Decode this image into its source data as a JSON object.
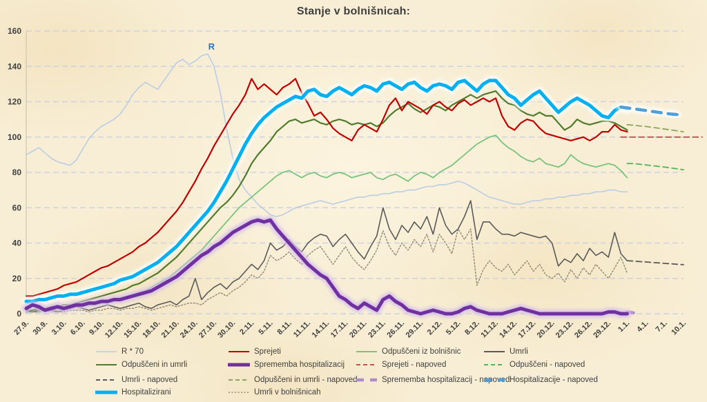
{
  "title": "Stanje v bolnišnicah:",
  "colors": {
    "background": "#f8eed5",
    "grid": "#c9d0e0",
    "text": "#3f3f3f",
    "annotation": "#2e74b5"
  },
  "chart_data": {
    "type": "line",
    "title": "Stanje v bolnišnicah:",
    "xlabel": "",
    "ylabel": "",
    "ylim": [
      0,
      160
    ],
    "y_ticks": [
      0,
      20,
      40,
      60,
      80,
      100,
      120,
      140,
      160
    ],
    "grid": "horizontal-dashed",
    "legend_position": "bottom",
    "x_tick_interval_days": 3,
    "x_total_days": 105,
    "x_start_label": "27.9.",
    "x_tick_labels": [
      "27.9.",
      "30.9.",
      "3.10.",
      "6.10.",
      "9.10.",
      "12.10.",
      "15.10.",
      "18.10.",
      "21.10.",
      "24.10.",
      "27.10.",
      "30.10.",
      "2.11.",
      "5.11.",
      "8.11.",
      "11.11.",
      "14.11.",
      "17.11.",
      "20.11.",
      "23.11.",
      "26.11.",
      "29.11.",
      "2.12.",
      "5.12.",
      "8.12.",
      "11.12.",
      "14.12.",
      "17.12.",
      "20.12.",
      "23.12.",
      "26.12.",
      "29.12.",
      "1.1.",
      "4.1.",
      "7.1.",
      "10.1."
    ],
    "annotation": {
      "label": "R",
      "day": 29.6,
      "value": 149.5,
      "color": "#2e74b5"
    },
    "series": [
      {
        "key": "r70",
        "name": "R * 70",
        "color": "#b9cde5",
        "width": 1.6,
        "start_day": 0,
        "values": [
          90,
          92,
          94,
          91,
          88,
          86,
          85,
          84,
          87,
          93,
          99,
          103,
          106,
          108,
          110,
          113,
          118,
          124,
          128,
          131,
          129,
          127,
          132,
          137,
          142,
          144,
          141,
          143,
          146,
          147,
          140,
          125,
          105,
          88,
          76,
          70,
          66,
          62,
          59,
          56,
          55,
          56,
          58,
          60,
          61,
          62,
          63,
          64,
          63,
          62,
          63,
          64,
          65,
          66,
          66,
          67,
          67,
          68,
          68,
          69,
          69,
          70,
          70,
          71,
          72,
          72,
          73,
          73,
          74,
          75,
          74,
          72,
          70,
          68,
          66,
          65,
          64,
          63,
          62,
          62,
          63,
          64,
          64,
          65,
          65,
          66,
          66,
          67,
          67,
          68,
          68,
          69,
          69,
          70,
          70,
          69,
          69
        ]
      },
      {
        "key": "odpusceni_iz_bolnisnic",
        "name": "Odpuščeni iz bolnišnic",
        "color": "#77c37c",
        "width": 1.8,
        "start_day": 0,
        "values": [
          1,
          1,
          1,
          2,
          2,
          2,
          3,
          3,
          4,
          4,
          5,
          5,
          6,
          7,
          8,
          9,
          10,
          11,
          12,
          13,
          15,
          17,
          19,
          21,
          24,
          27,
          30,
          33,
          36,
          40,
          44,
          48,
          52,
          56,
          60,
          63,
          66,
          69,
          72,
          75,
          78,
          80,
          81,
          79,
          77,
          79,
          80,
          78,
          77,
          79,
          80,
          79,
          77,
          78,
          79,
          80,
          77,
          76,
          78,
          79,
          77,
          75,
          78,
          80,
          79,
          77,
          80,
          82,
          84,
          87,
          90,
          93,
          96,
          98,
          100,
          101,
          97,
          94,
          92,
          89,
          87,
          86,
          88,
          85,
          84,
          83,
          85,
          90,
          87,
          85,
          84,
          83,
          84,
          85,
          84,
          81,
          77
        ]
      },
      {
        "key": "umrli",
        "name": "Umrli",
        "color": "#595959",
        "width": 1.6,
        "start_day": 0,
        "values": [
          2,
          1,
          2,
          3,
          2,
          1,
          2,
          3,
          4,
          3,
          2,
          3,
          4,
          5,
          4,
          3,
          4,
          5,
          6,
          4,
          3,
          5,
          6,
          7,
          5,
          8,
          10,
          20,
          8,
          12,
          15,
          17,
          14,
          18,
          20,
          24,
          28,
          25,
          30,
          40,
          36,
          38,
          42,
          38,
          35,
          40,
          43,
          45,
          44,
          38,
          42,
          45,
          40,
          35,
          31,
          38,
          44,
          60,
          48,
          42,
          50,
          46,
          52,
          48,
          55,
          45,
          60,
          50,
          45,
          48,
          55,
          64,
          42,
          52,
          52,
          48,
          45,
          45,
          44,
          46,
          45,
          44,
          43,
          44,
          40,
          27,
          31,
          29,
          34,
          30,
          37,
          33,
          35,
          32,
          46,
          34,
          30
        ]
      },
      {
        "key": "umrli_v_bolnisnicah",
        "name": "Umrli v bolnišnicah",
        "color": "#8f8875",
        "width": 1.4,
        "dash": "2 2.6",
        "start_day": 0,
        "values": [
          1,
          1,
          1,
          2,
          1,
          1,
          1,
          2,
          2,
          2,
          1,
          2,
          2,
          3,
          3,
          2,
          3,
          3,
          4,
          3,
          2,
          3,
          4,
          5,
          4,
          5,
          6,
          6,
          5,
          8,
          10,
          12,
          10,
          13,
          15,
          18,
          22,
          20,
          24,
          33,
          30,
          32,
          35,
          31,
          28,
          33,
          36,
          38,
          33,
          28,
          33,
          38,
          32,
          28,
          25,
          30,
          36,
          47,
          38,
          33,
          40,
          36,
          42,
          38,
          45,
          35,
          45,
          40,
          34,
          48,
          42,
          48,
          16,
          25,
          30,
          26,
          24,
          28,
          22,
          26,
          30,
          24,
          28,
          22,
          20,
          23,
          18,
          25,
          20,
          26,
          22,
          28,
          24,
          20,
          26,
          32,
          23
        ]
      },
      {
        "key": "odpusceni_in_umrli",
        "name": "Odpuščeni in umrli",
        "color": "#4e7a2a",
        "width": 2.2,
        "start_day": 0,
        "values": [
          2,
          2,
          3,
          3,
          4,
          4,
          5,
          5,
          6,
          7,
          8,
          9,
          10,
          11,
          12,
          13,
          14,
          16,
          17,
          19,
          21,
          23,
          26,
          29,
          32,
          36,
          40,
          44,
          48,
          52,
          56,
          60,
          63,
          67,
          72,
          78,
          85,
          90,
          94,
          98,
          103,
          106,
          109,
          110,
          108,
          109,
          110,
          108,
          107,
          109,
          110,
          109,
          107,
          108,
          107,
          108,
          106,
          108,
          112,
          115,
          117,
          119,
          116,
          114,
          116,
          118,
          117,
          115,
          118,
          120,
          122,
          124,
          122,
          124,
          125,
          126,
          122,
          119,
          118,
          115,
          113,
          112,
          114,
          112,
          112,
          108,
          104,
          106,
          110,
          108,
          107,
          108,
          109,
          109,
          108,
          106,
          104
        ]
      },
      {
        "key": "sprejeti",
        "name": "Sprejeti",
        "color": "#c00000",
        "width": 2.2,
        "start_day": 0,
        "values": [
          10,
          10,
          11,
          12,
          13,
          14,
          16,
          17,
          18,
          20,
          22,
          24,
          26,
          27,
          29,
          31,
          33,
          35,
          38,
          40,
          43,
          46,
          50,
          54,
          58,
          63,
          69,
          75,
          82,
          88,
          95,
          101,
          107,
          113,
          118,
          124,
          133,
          127,
          130,
          127,
          124,
          128,
          130,
          133,
          125,
          119,
          112,
          114,
          110,
          105,
          102,
          100,
          98,
          104,
          107,
          105,
          103,
          110,
          118,
          122,
          115,
          120,
          118,
          116,
          113,
          118,
          120,
          117,
          115,
          119,
          121,
          118,
          120,
          122,
          120,
          122,
          112,
          106,
          104,
          108,
          110,
          109,
          105,
          102,
          101,
          100,
          99,
          98,
          99,
          100,
          98,
          100,
          103,
          103,
          107,
          104,
          103
        ]
      },
      {
        "key": "sprejeti_napoved",
        "name": "Sprejeti - napoved",
        "color": "#c0504d",
        "width": 1.8,
        "dash": "8 5",
        "start_day": 95,
        "values": [
          100,
          100,
          100,
          100,
          100,
          100,
          100,
          100,
          100,
          100,
          100,
          100,
          100,
          100
        ]
      },
      {
        "key": "odpusceni_napoved",
        "name": "Odpuščeni - napoved",
        "color": "#57b25c",
        "width": 1.8,
        "dash": "8 5",
        "start_day": 96,
        "values": [
          85,
          85,
          84.6,
          84.2,
          83.8,
          83.4,
          83,
          82.5,
          82,
          81.5
        ]
      },
      {
        "key": "umrli_napoved",
        "name": "Umrli - napoved",
        "color": "#595959",
        "width": 1.8,
        "dash": "8 5",
        "start_day": 96,
        "values": [
          30,
          29.8,
          29.5,
          29.3,
          29,
          28.8,
          28.5,
          28.3,
          28,
          27.8
        ]
      },
      {
        "key": "odpusceni_in_umrli_napoved",
        "name": "Odpuščeni in umrli - napoved",
        "color": "#8aa65b",
        "width": 1.8,
        "dash": "8 5",
        "start_day": 96,
        "values": [
          107,
          106.7,
          106.3,
          106,
          105.5,
          105,
          104.5,
          104,
          103.5,
          103
        ]
      },
      {
        "key": "hospitalizirani",
        "name": "Hospitalizirani",
        "color": "#00b0f0",
        "width": 5,
        "glow": "#ffffff",
        "start_day": 0,
        "values": [
          7,
          7,
          8,
          8,
          9,
          10,
          10,
          11,
          11,
          12,
          13,
          14,
          15,
          16,
          17,
          19,
          20,
          21,
          23,
          25,
          27,
          29,
          32,
          35,
          38,
          42,
          46,
          50,
          54,
          58,
          63,
          69,
          75,
          82,
          89,
          96,
          102,
          107,
          111,
          114,
          117,
          119,
          121,
          123,
          122,
          126,
          127,
          124,
          123,
          126,
          128,
          126,
          124,
          127,
          129,
          128,
          126,
          130,
          131,
          129,
          127,
          130,
          131,
          128,
          126,
          129,
          130,
          129,
          127,
          131,
          132,
          129,
          126,
          130,
          132,
          132,
          128,
          124,
          122,
          118,
          121,
          124,
          126,
          122,
          118,
          114,
          117,
          120,
          122,
          120,
          118,
          115,
          112,
          111,
          115,
          117,
          116
        ]
      },
      {
        "key": "hospitalizacije_napoved",
        "name": "Hospitalizacije - napoved",
        "color": "#4f9fd9",
        "width": 4.5,
        "dash": "13 10",
        "glow": "#ffffff",
        "start_day": 95,
        "values": [
          117,
          116.5,
          116,
          115.5,
          115,
          114.5,
          114,
          113.5,
          113,
          112.7,
          112.4
        ]
      },
      {
        "key": "sprememba_napoved",
        "name": "Sprememba hospitalizacij - napoved",
        "color": "#ae8cc9",
        "width": 4.5,
        "dash": "12 10",
        "glow": "#eadef6",
        "start_day": 96,
        "values": [
          1,
          0.5
        ]
      },
      {
        "key": "sprememba",
        "name": "Sprememba hospitalizacij",
        "color": "#7030a0",
        "width": 5,
        "glow": "#d5c0e9",
        "start_day": 0,
        "values": [
          3,
          5,
          4,
          2,
          3,
          4,
          3,
          4,
          5,
          5,
          6,
          6,
          7,
          7,
          8,
          8,
          9,
          10,
          11,
          12,
          13,
          15,
          17,
          19,
          21,
          24,
          27,
          30,
          33,
          35,
          38,
          40,
          43,
          46,
          48,
          50,
          52,
          53,
          52,
          53,
          48,
          44,
          40,
          36,
          32,
          28,
          25,
          22,
          20,
          15,
          10,
          8,
          5,
          3,
          6,
          4,
          2,
          8,
          10,
          7,
          5,
          2,
          1,
          0,
          1,
          2,
          1,
          0,
          0,
          1,
          3,
          4,
          2,
          1,
          0,
          0,
          0,
          1,
          2,
          3,
          2,
          1,
          0,
          0,
          0,
          0,
          0,
          0,
          0,
          0,
          0,
          0,
          0,
          1,
          1,
          0,
          0
        ]
      }
    ]
  },
  "legend": {
    "items": [
      {
        "label": "R * 70",
        "marker": "thin",
        "color": "#b9cde5",
        "row": 0,
        "col": 0
      },
      {
        "label": "Sprejeti",
        "marker": "solid",
        "color": "#c00000",
        "row": 0,
        "col": 1
      },
      {
        "label": "Odpuščeni iz bolnišnic",
        "marker": "solid",
        "color": "#77c37c",
        "row": 0,
        "col": 2
      },
      {
        "label": "Umrli",
        "marker": "solid",
        "color": "#595959",
        "row": 0,
        "col": 3
      },
      {
        "label": "Odpuščeni in umrli",
        "marker": "solid",
        "color": "#4e7a2a",
        "row": 1,
        "col": 0
      },
      {
        "label": "Sprememba hospitalizacij",
        "marker": "thick",
        "color": "#7030a0",
        "row": 1,
        "col": 1
      },
      {
        "label": "Sprejeti - napoved",
        "marker": "dash",
        "color": "#c0504d",
        "row": 1,
        "col": 2
      },
      {
        "label": "Odpuščeni - napoved",
        "marker": "dash",
        "color": "#57b25c",
        "row": 1,
        "col": 3
      },
      {
        "label": "Umrli - napoved",
        "marker": "dash",
        "color": "#595959",
        "row": 2,
        "col": 0
      },
      {
        "label": "Odpuščeni in umrli - napoved",
        "marker": "dash",
        "color": "#8aa65b",
        "row": 2,
        "col": 1
      },
      {
        "label": "Sprememba hospitalizacij - napoved",
        "marker": "thickdash",
        "color": "#ae8cc9",
        "row": 2,
        "col": 2
      },
      {
        "label": "Hospitalizacije - napoved",
        "marker": "thickdash",
        "color": "#4f9fd9",
        "row": 2,
        "col": 3
      },
      {
        "label": "Hospitalizirani",
        "marker": "thick",
        "color": "#00b0f0",
        "row": 3,
        "col": 0
      },
      {
        "label": "Umrli v bolnišnicah",
        "marker": "dot",
        "color": "#8f8875",
        "row": 3,
        "col": 1
      }
    ]
  }
}
